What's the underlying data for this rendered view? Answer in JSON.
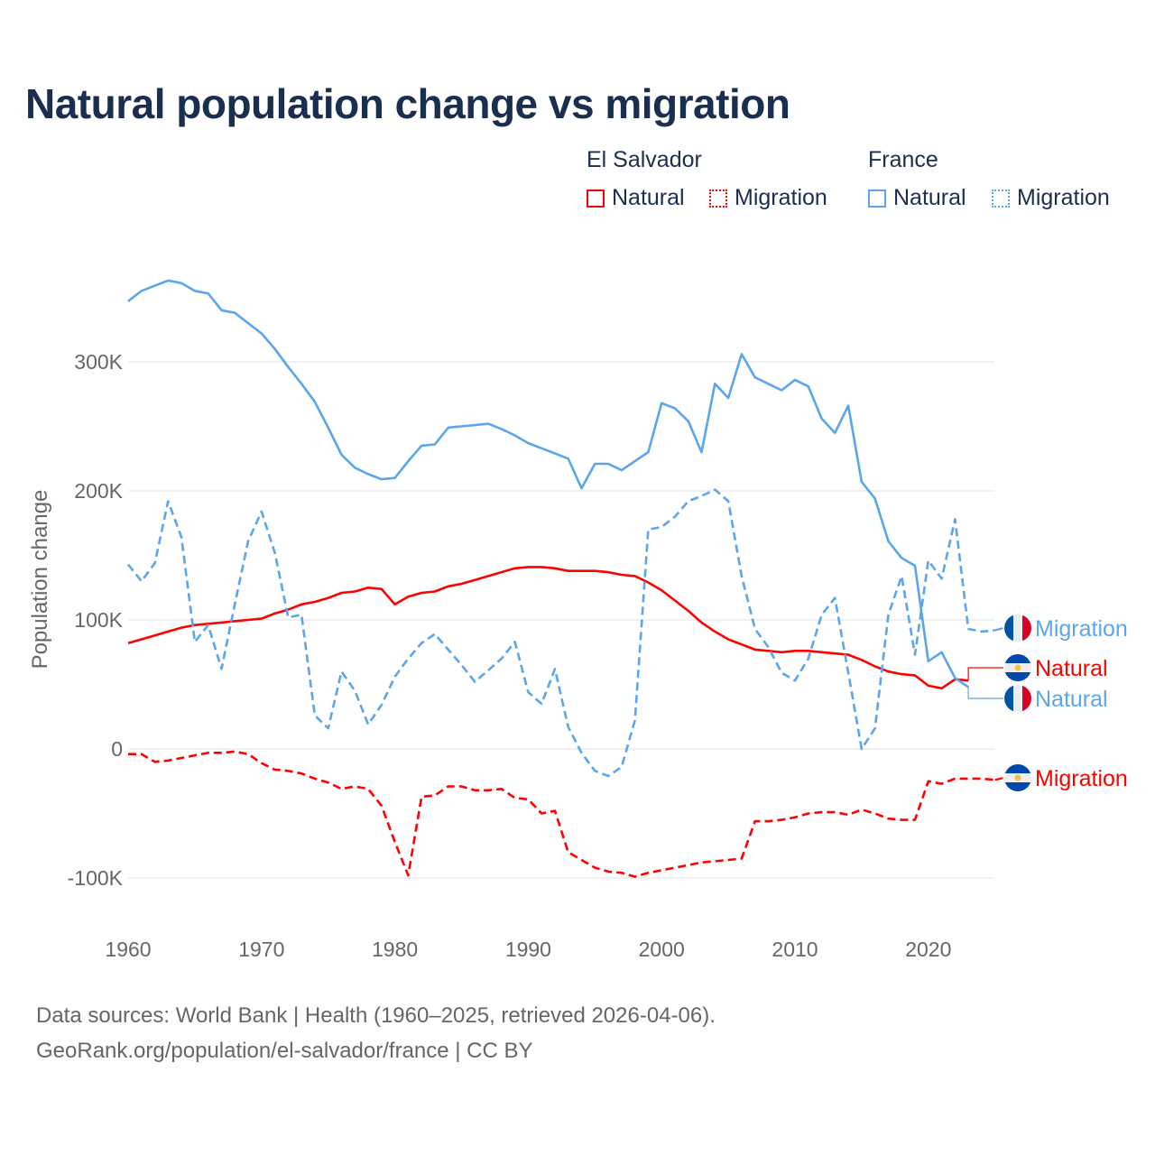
{
  "title": "Natural population change vs migration",
  "legend": {
    "groups": [
      {
        "country": "El Salvador",
        "items": [
          "Natural",
          "Migration"
        ],
        "color": "#ff0000"
      },
      {
        "country": "France",
        "items": [
          "Natural",
          "Migration"
        ],
        "color": "#5aa5ec"
      }
    ]
  },
  "footer": {
    "line1": "Data sources: World Bank | Health (1960–2025, retrieved 2026-04-06).",
    "line2": "GeoRank.org/population/el-salvador/france | CC BY"
  },
  "chart_data": {
    "type": "line",
    "title": "Natural population change vs migration",
    "xlabel": "",
    "ylabel": "Population change",
    "units": "thousands",
    "xlim": [
      1960,
      2025
    ],
    "ylim": [
      -100,
      360
    ],
    "yticks": [
      -100,
      0,
      100,
      200,
      300
    ],
    "ytick_labels": [
      "-100K",
      "0",
      "100K",
      "200K",
      "300K"
    ],
    "xticks": [
      1960,
      1970,
      1980,
      1990,
      2000,
      2010,
      2020
    ],
    "xtick_labels": [
      "1960",
      "1970",
      "1980",
      "1990",
      "2000",
      "2010",
      "2020"
    ],
    "grid": true,
    "legend_position": "top-right",
    "series": [
      {
        "name": "El Salvador Natural",
        "label": "Natural",
        "country": "El Salvador",
        "color": "#ff0000",
        "dash": false,
        "start": 1960,
        "values": [
          82,
          85,
          88,
          91,
          94,
          96,
          97,
          98,
          99,
          100,
          101,
          105,
          108,
          112,
          114,
          117,
          121,
          122,
          125,
          124,
          112,
          118,
          121,
          122,
          126,
          128,
          131,
          134,
          137,
          140,
          141,
          141,
          140,
          138,
          138,
          138,
          137,
          135,
          134,
          129,
          123,
          115,
          107,
          98,
          91,
          85,
          81,
          77,
          76,
          75,
          76,
          76,
          75,
          74,
          73,
          69,
          64,
          60,
          58,
          57,
          49,
          47,
          54,
          53
        ]
      },
      {
        "name": "El Salvador Migration",
        "label": "Migration",
        "country": "El Salvador",
        "color": "#ff0000",
        "dash": true,
        "start": 1960,
        "values": [
          -4,
          -4,
          -10,
          -9,
          -7,
          -5,
          -3,
          -3,
          -2,
          -4,
          -11,
          -16,
          -17,
          -19,
          -23,
          -26,
          -31,
          -29,
          -31,
          -44,
          -72,
          -98,
          -37,
          -36,
          -29,
          -29,
          -32,
          -32,
          -31,
          -38,
          -39,
          -50,
          -48,
          -80,
          -86,
          -92,
          -95,
          -96,
          -99,
          -96,
          -94,
          -92,
          -90,
          -88,
          -87,
          -86,
          -85,
          -56,
          -56,
          -55,
          -53,
          -50,
          -49,
          -49,
          -51,
          -47,
          -50,
          -54,
          -55,
          -55,
          -25,
          -27,
          -23,
          -23,
          -23,
          -24
        ]
      },
      {
        "name": "France Natural",
        "label": "Natural",
        "country": "France",
        "color": "#5aa5ec",
        "dash": false,
        "start": 1960,
        "values": [
          347,
          355,
          359,
          363,
          361,
          355,
          353,
          340,
          338,
          330,
          322,
          310,
          296,
          283,
          269,
          249,
          228,
          218,
          213,
          209,
          210,
          223,
          235,
          236,
          249,
          250,
          251,
          252,
          248,
          243,
          237,
          233,
          229,
          225,
          202,
          221,
          221,
          216,
          223,
          230,
          268,
          264,
          254,
          230,
          283,
          272,
          306,
          288,
          283,
          278,
          286,
          281,
          256,
          245,
          266,
          207,
          194,
          161,
          148,
          142,
          68,
          75,
          55,
          48
        ]
      },
      {
        "name": "France Migration",
        "label": "Migration",
        "country": "France",
        "color": "#5aa5ec",
        "dash": true,
        "start": 1960,
        "values": [
          143,
          130,
          144,
          192,
          164,
          83,
          96,
          62,
          112,
          161,
          184,
          152,
          102,
          104,
          26,
          16,
          60,
          45,
          19,
          34,
          56,
          70,
          82,
          89,
          77,
          65,
          52,
          61,
          70,
          83,
          44,
          35,
          62,
          17,
          -3,
          -17,
          -21,
          -14,
          22,
          170,
          172,
          180,
          192,
          196,
          201,
          192,
          134,
          93,
          79,
          59,
          53,
          70,
          104,
          117,
          59,
          0,
          16,
          104,
          134,
          73,
          146,
          132,
          178,
          93,
          91,
          92
        ]
      }
    ]
  }
}
